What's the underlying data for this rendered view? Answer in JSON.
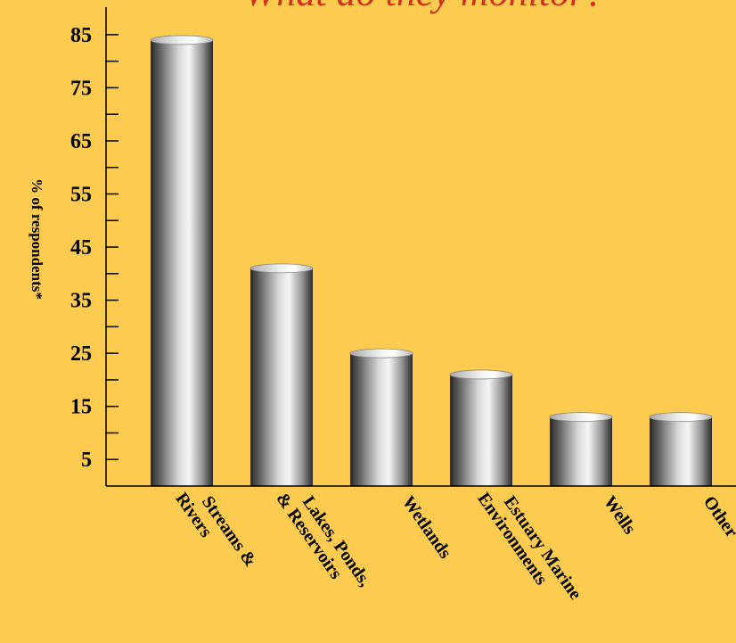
{
  "chart_data": {
    "type": "bar",
    "title": "What do they monitor?",
    "ylabel": "% of respondents*",
    "xlabel": "",
    "categories": [
      [
        "Streams &",
        "Rivers"
      ],
      [
        "Lakes, Ponds,",
        "& Reservoirs"
      ],
      [
        "Wetlands"
      ],
      [
        "Estuary Marine",
        "Environments"
      ],
      [
        "Wells"
      ],
      [
        "Other"
      ]
    ],
    "values": [
      84,
      41,
      25,
      21,
      13,
      13
    ],
    "ylim": [
      0,
      90
    ],
    "yticks": [
      5,
      15,
      25,
      35,
      45,
      55,
      65,
      75,
      85
    ],
    "grid": false,
    "legend": "none",
    "colors": {
      "background": "#fccb50",
      "title": "#d2311d",
      "bar_light": "#f4f4f4",
      "bar_dark": "#262626",
      "axis": "#000000"
    }
  }
}
